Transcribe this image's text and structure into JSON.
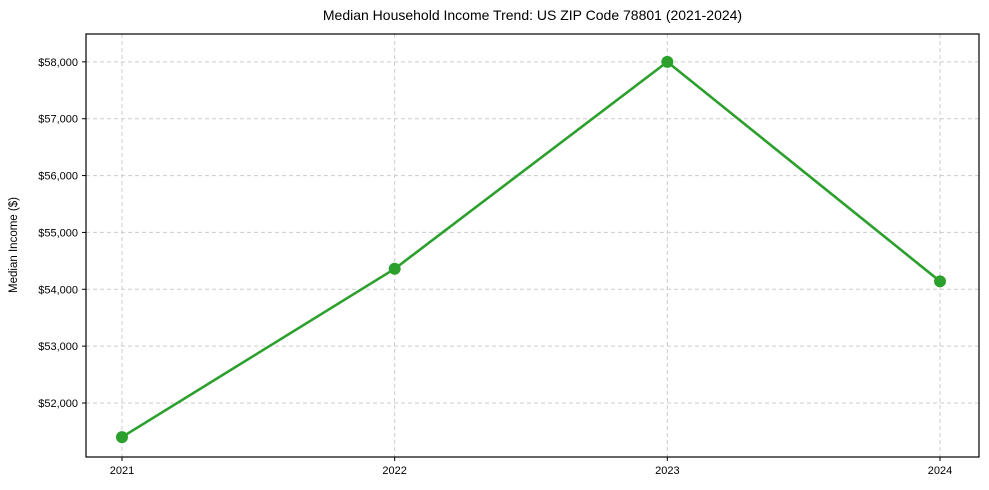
{
  "chart_data": {
    "type": "line",
    "title": "Median Household Income Trend: US ZIP Code 78801 (2021-2024)",
    "xlabel": "",
    "ylabel": "Median Income ($)",
    "x": [
      2021,
      2022,
      2023,
      2024
    ],
    "values": [
      51400,
      54360,
      58000,
      54140
    ],
    "xticks": [
      {
        "value": 2021,
        "label": "2021"
      },
      {
        "value": 2022,
        "label": "2022"
      },
      {
        "value": 2023,
        "label": "2023"
      },
      {
        "value": 2024,
        "label": "2024"
      }
    ],
    "yticks": [
      {
        "value": 52000,
        "label": "$52,000"
      },
      {
        "value": 53000,
        "label": "$53,000"
      },
      {
        "value": 54000,
        "label": "$54,000"
      },
      {
        "value": 55000,
        "label": "$55,000"
      },
      {
        "value": 56000,
        "label": "$56,000"
      },
      {
        "value": 57000,
        "label": "$57,000"
      },
      {
        "value": 58000,
        "label": "$58,000"
      }
    ],
    "xlim": [
      2020.868,
      2024.143
    ],
    "ylim": [
      51050,
      58490
    ],
    "grid": true,
    "grid_style": "dashed",
    "legend_position": "none",
    "colors": {
      "line": "#2ca02c",
      "marker": "#2ca02c",
      "grid": "#cccccc",
      "axis": "#000000",
      "text": "#000000",
      "background": "#ffffff"
    }
  }
}
